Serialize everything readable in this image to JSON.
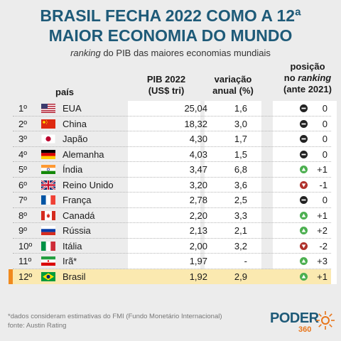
{
  "title_line1": "BRASIL FECHA 2022 COMO A 12ª",
  "title_line2": "MAIOR ECONOMIA DO MUNDO",
  "subtitle_italic": "ranking",
  "subtitle_rest": " do PIB das maiores economias mundiais",
  "headers": {
    "country": "país",
    "pib_l1": "PIB 2022",
    "pib_l2": "(US$ tri)",
    "var_l1": "variação",
    "var_l2": "anual (%)",
    "pos_l1": "posição",
    "pos_l2a": "no ",
    "pos_l2b": "ranking",
    "pos_l3": "(ante 2021)"
  },
  "colors": {
    "title": "#1e5a78",
    "highlight_row": "#fbe9b0",
    "highlight_bar": "#f08a1e",
    "neutral": "#222222",
    "up": "#4caf50",
    "down": "#b0322c"
  },
  "chart_data": {
    "type": "table",
    "columns": [
      "país",
      "PIB 2022 (US$ tri)",
      "variação anual (%)",
      "posição no ranking (ante 2021)"
    ],
    "rows": [
      {
        "rank": "1º",
        "flag": "usa-flag",
        "country": "EUA",
        "pib": "25,04",
        "var": "1,6",
        "trend": "same",
        "change": "0"
      },
      {
        "rank": "2º",
        "flag": "china-flag",
        "country": "China",
        "pib": "18,32",
        "var": "3,0",
        "trend": "same",
        "change": "0"
      },
      {
        "rank": "3º",
        "flag": "japan-flag",
        "country": "Japão",
        "pib": "4,30",
        "var": "1,7",
        "trend": "same",
        "change": "0"
      },
      {
        "rank": "4º",
        "flag": "germany-flag",
        "country": "Alemanha",
        "pib": "4,03",
        "var": "1,5",
        "trend": "same",
        "change": "0"
      },
      {
        "rank": "5º",
        "flag": "india-flag",
        "country": "Índia",
        "pib": "3,47",
        "var": "6,8",
        "trend": "up",
        "change": "+1"
      },
      {
        "rank": "6º",
        "flag": "uk-flag",
        "country": "Reino Unido",
        "pib": "3,20",
        "var": "3,6",
        "trend": "down",
        "change": "-1"
      },
      {
        "rank": "7º",
        "flag": "france-flag",
        "country": "França",
        "pib": "2,78",
        "var": "2,5",
        "trend": "same",
        "change": "0"
      },
      {
        "rank": "8º",
        "flag": "canada-flag",
        "country": "Canadá",
        "pib": "2,20",
        "var": "3,3",
        "trend": "up",
        "change": "+1"
      },
      {
        "rank": "9º",
        "flag": "russia-flag",
        "country": "Rússia",
        "pib": "2,13",
        "var": "2,1",
        "trend": "up",
        "change": "+2"
      },
      {
        "rank": "10º",
        "flag": "italy-flag",
        "country": "Itália",
        "pib": "2,00",
        "var": "3,2",
        "trend": "down",
        "change": "-2"
      },
      {
        "rank": "11º",
        "flag": "iran-flag",
        "country": "Irã*",
        "pib": "1,97",
        "var": "-",
        "trend": "up",
        "change": "+3"
      },
      {
        "rank": "12º",
        "flag": "brazil-flag",
        "country": "Brasil",
        "pib": "1,92",
        "var": "2,9",
        "trend": "up",
        "change": "+1",
        "highlight": true
      }
    ]
  },
  "footnote1": "*dados consideram estimativas do FMI (Fundo Monetário Internacional)",
  "footnote2": "fonte: Austin Rating",
  "logo_main": "PODER",
  "logo_sub": "360"
}
